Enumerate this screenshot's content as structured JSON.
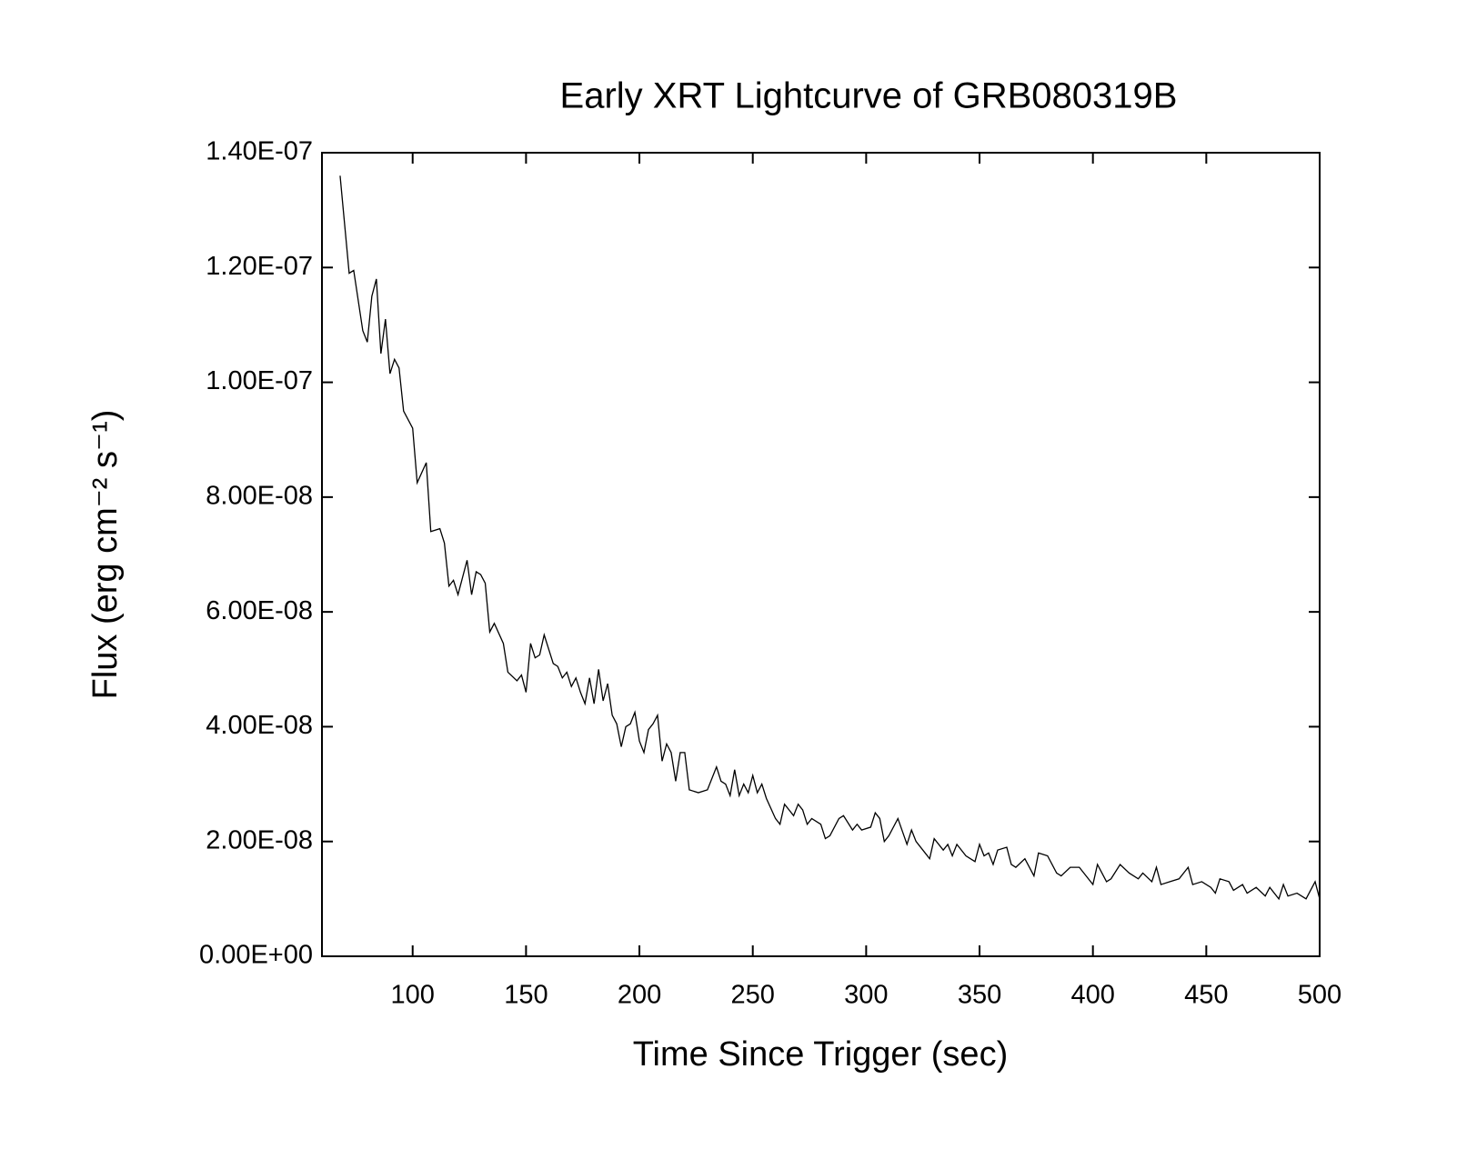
{
  "chart_data": {
    "type": "line",
    "title": "Early XRT Lightcurve of GRB080319B",
    "x_label": "Time Since Trigger (sec)",
    "y_label": "Flux (erg cm⁻² s⁻¹)",
    "color": "#000000",
    "xlim": [
      60,
      500
    ],
    "xticks": [
      100,
      150,
      200,
      250,
      300,
      350,
      400,
      450,
      500
    ],
    "ylim": [
      0,
      1.4e-07
    ],
    "yticks": [
      {
        "value": 0,
        "label": "0.00E+00"
      },
      {
        "value": 2e-08,
        "label": "2.00E-08"
      },
      {
        "value": 4e-08,
        "label": "4.00E-08"
      },
      {
        "value": 6e-08,
        "label": "6.00E-08"
      },
      {
        "value": 8e-08,
        "label": "8.00E-08"
      },
      {
        "value": 1e-07,
        "label": "1.00E-07"
      },
      {
        "value": 1.2e-07,
        "label": "1.20E-07"
      },
      {
        "value": 1.4e-07,
        "label": "1.40E-07"
      }
    ],
    "x": [
      68,
      72,
      74,
      78,
      80,
      82,
      84,
      86,
      88,
      90,
      92,
      94,
      96,
      100,
      102,
      106,
      108,
      112,
      114,
      116,
      118,
      120,
      124,
      126,
      128,
      130,
      132,
      134,
      136,
      140,
      142,
      146,
      148,
      150,
      152,
      154,
      156,
      158,
      162,
      164,
      166,
      168,
      170,
      172,
      174,
      176,
      178,
      180,
      182,
      184,
      186,
      188,
      190,
      192,
      194,
      196,
      198,
      200,
      202,
      204,
      206,
      208,
      210,
      212,
      214,
      216,
      218,
      220,
      222,
      226,
      230,
      234,
      236,
      238,
      240,
      242,
      244,
      246,
      248,
      250,
      252,
      254,
      256,
      260,
      262,
      264,
      266,
      268,
      270,
      272,
      274,
      276,
      280,
      282,
      284,
      288,
      290,
      294,
      296,
      298,
      302,
      304,
      306,
      308,
      310,
      314,
      318,
      320,
      322,
      326,
      328,
      330,
      334,
      336,
      338,
      340,
      344,
      346,
      348,
      350,
      352,
      354,
      356,
      358,
      362,
      364,
      366,
      370,
      374,
      376,
      380,
      384,
      386,
      390,
      394,
      398,
      400,
      402,
      406,
      408,
      412,
      416,
      420,
      422,
      426,
      428,
      430,
      434,
      438,
      442,
      444,
      448,
      452,
      454,
      456,
      460,
      462,
      466,
      468,
      472,
      476,
      478,
      482,
      484,
      486,
      490,
      494,
      498,
      500
    ],
    "values": [
      1.36e-07,
      1.19e-07,
      1.195e-07,
      1.09e-07,
      1.07e-07,
      1.15e-07,
      1.18e-07,
      1.05e-07,
      1.11e-07,
      1.015e-07,
      1.04e-07,
      1.025e-07,
      9.5e-08,
      9.2e-08,
      8.25e-08,
      8.6e-08,
      7.4e-08,
      7.45e-08,
      7.2e-08,
      6.45e-08,
      6.55e-08,
      6.3e-08,
      6.9e-08,
      6.3e-08,
      6.7e-08,
      6.65e-08,
      6.5e-08,
      5.65e-08,
      5.8e-08,
      5.45e-08,
      4.95e-08,
      4.8e-08,
      4.9e-08,
      4.6e-08,
      5.45e-08,
      5.2e-08,
      5.25e-08,
      5.6e-08,
      5.1e-08,
      5.05e-08,
      4.85e-08,
      4.95e-08,
      4.7e-08,
      4.85e-08,
      4.6e-08,
      4.4e-08,
      4.85e-08,
      4.4e-08,
      5e-08,
      4.45e-08,
      4.75e-08,
      4.2e-08,
      4.05e-08,
      3.65e-08,
      4e-08,
      4.05e-08,
      4.25e-08,
      3.75e-08,
      3.55e-08,
      3.95e-08,
      4.05e-08,
      4.2e-08,
      3.4e-08,
      3.7e-08,
      3.55e-08,
      3.05e-08,
      3.55e-08,
      3.55e-08,
      2.9e-08,
      2.85e-08,
      2.9e-08,
      3.3e-08,
      3.05e-08,
      3e-08,
      2.8e-08,
      3.25e-08,
      2.8e-08,
      3e-08,
      2.85e-08,
      3.15e-08,
      2.85e-08,
      3e-08,
      2.75e-08,
      2.4e-08,
      2.3e-08,
      2.65e-08,
      2.55e-08,
      2.45e-08,
      2.65e-08,
      2.55e-08,
      2.3e-08,
      2.4e-08,
      2.3e-08,
      2.05e-08,
      2.1e-08,
      2.4e-08,
      2.45e-08,
      2.2e-08,
      2.3e-08,
      2.2e-08,
      2.25e-08,
      2.5e-08,
      2.4e-08,
      2e-08,
      2.1e-08,
      2.4e-08,
      1.95e-08,
      2.2e-08,
      2e-08,
      1.8e-08,
      1.7e-08,
      2.05e-08,
      1.85e-08,
      1.95e-08,
      1.75e-08,
      1.95e-08,
      1.75e-08,
      1.7e-08,
      1.65e-08,
      1.95e-08,
      1.75e-08,
      1.8e-08,
      1.6e-08,
      1.85e-08,
      1.9e-08,
      1.6e-08,
      1.55e-08,
      1.7e-08,
      1.4e-08,
      1.8e-08,
      1.75e-08,
      1.45e-08,
      1.4e-08,
      1.55e-08,
      1.55e-08,
      1.35e-08,
      1.25e-08,
      1.6e-08,
      1.3e-08,
      1.35e-08,
      1.6e-08,
      1.45e-08,
      1.35e-08,
      1.45e-08,
      1.3e-08,
      1.55e-08,
      1.25e-08,
      1.3e-08,
      1.35e-08,
      1.55e-08,
      1.25e-08,
      1.3e-08,
      1.2e-08,
      1.1e-08,
      1.35e-08,
      1.3e-08,
      1.15e-08,
      1.25e-08,
      1.1e-08,
      1.2e-08,
      1.05e-08,
      1.2e-08,
      1e-08,
      1.25e-08,
      1.05e-08,
      1.1e-08,
      1e-08,
      1.3e-08,
      1e-08
    ]
  }
}
